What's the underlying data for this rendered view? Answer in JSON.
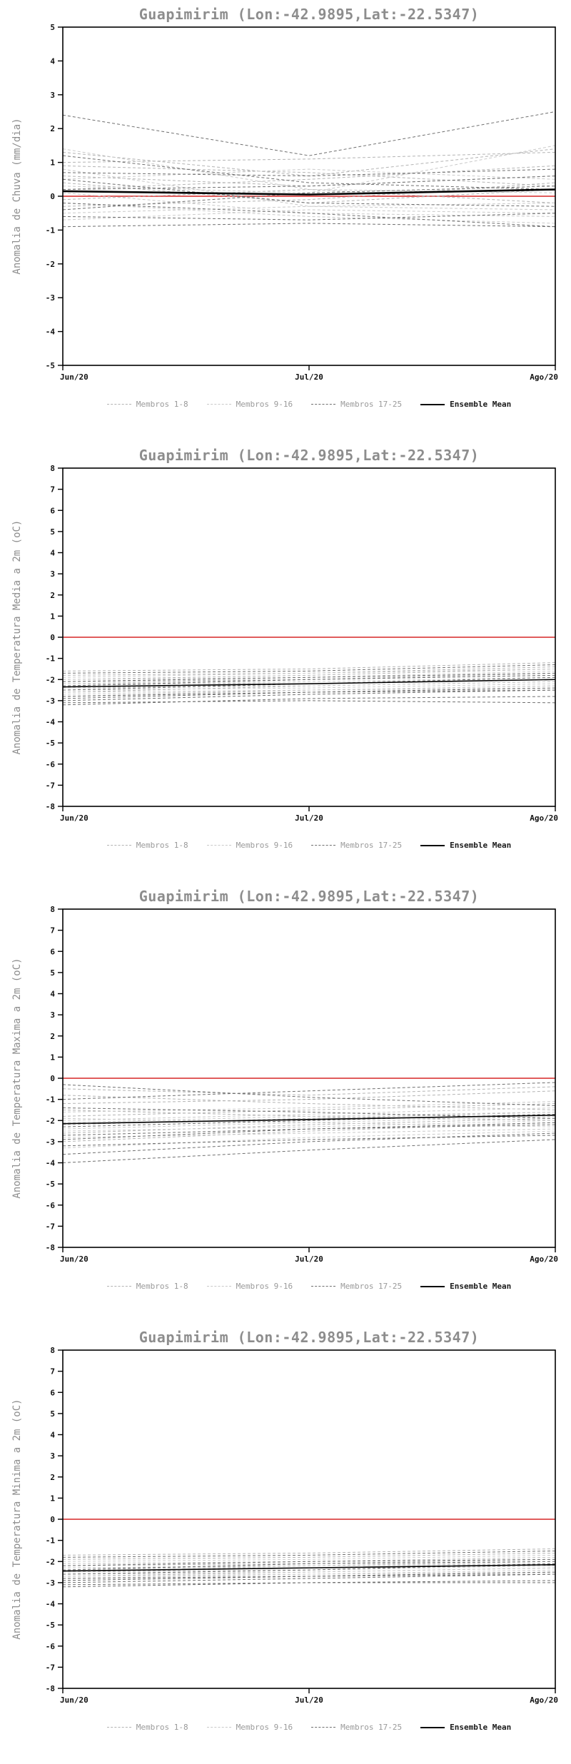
{
  "accent_colors": {
    "zero_line_red": "#e05c5c",
    "group1_gray": "#b3b3b3",
    "group2_gray": "#c9c9c9",
    "group3_gray": "#6f6f6f",
    "mean_black": "#000000",
    "title_gray": "#8d8d8d"
  },
  "chart_data": [
    {
      "type": "line",
      "title": "Guapimirim (Lon:-42.9895,Lat:-22.5347)",
      "ylabel": "Anomalia de Chuva (mm/dia)",
      "x_ticklabels": [
        "Jun/20",
        "Jul/20",
        "Ago/20"
      ],
      "ylim": [
        -5,
        5
      ],
      "ytick_step": 1,
      "grid": false,
      "legend_position": "bottom",
      "zero_line": {
        "value": 0,
        "color": "#e05c5c"
      },
      "mean": {
        "name": "Ensemble Mean",
        "color": "#000000",
        "width": 2.6,
        "values": [
          0.15,
          0.05,
          0.2
        ]
      },
      "groups": [
        {
          "name": "Membros 1-8",
          "color": "#b3b3b3",
          "members": [
            [
              1.3,
              0.6,
              1.4
            ],
            [
              0.9,
              0.7,
              0.3
            ],
            [
              0.6,
              0.3,
              0.6
            ],
            [
              0.4,
              -0.2,
              0.2
            ],
            [
              0.2,
              0.5,
              0.9
            ],
            [
              -0.1,
              0.2,
              -0.2
            ],
            [
              -0.3,
              -0.1,
              0.4
            ],
            [
              1.0,
              1.1,
              1.3
            ]
          ]
        },
        {
          "name": "Membros 9-16",
          "color": "#c9c9c9",
          "members": [
            [
              1.4,
              0.2,
              0.1
            ],
            [
              0.8,
              -0.3,
              -0.4
            ],
            [
              0.5,
              0.8,
              0.5
            ],
            [
              0.1,
              -0.5,
              -0.6
            ],
            [
              -0.2,
              -0.6,
              -0.8
            ],
            [
              -0.5,
              -0.3,
              -0.2
            ],
            [
              0.3,
              0.1,
              1.5
            ],
            [
              -0.7,
              -0.4,
              -0.5
            ]
          ]
        },
        {
          "name": "Membros 17-25",
          "color": "#6f6f6f",
          "members": [
            [
              2.4,
              1.2,
              2.5
            ],
            [
              1.2,
              0.4,
              0.2
            ],
            [
              0.5,
              -0.2,
              -0.3
            ],
            [
              -0.2,
              -0.5,
              -0.9
            ],
            [
              -0.6,
              -0.7,
              -0.5
            ],
            [
              -0.9,
              -0.8,
              -0.9
            ],
            [
              0.2,
              0.3,
              0.6
            ],
            [
              -0.4,
              0.1,
              0.3
            ],
            [
              0.7,
              0.6,
              0.8
            ]
          ]
        }
      ]
    },
    {
      "type": "line",
      "title": "Guapimirim (Lon:-42.9895,Lat:-22.5347)",
      "ylabel": "Anomalia de Temperatura Media a 2m (oC)",
      "x_ticklabels": [
        "Jun/20",
        "Jul/20",
        "Ago/20"
      ],
      "ylim": [
        -8,
        8
      ],
      "ytick_step": 1,
      "grid": false,
      "legend_position": "bottom",
      "zero_line": {
        "value": 0,
        "color": "#e05c5c"
      },
      "mean": {
        "name": "Ensemble Mean",
        "color": "#000000",
        "width": 1.6,
        "values": [
          -2.35,
          -2.2,
          -2.0
        ]
      },
      "groups": [
        {
          "name": "Membros 1-8",
          "color": "#b3b3b3",
          "members": [
            [
              -2.0,
              -1.8,
              -1.5
            ],
            [
              -2.2,
              -2.0,
              -1.8
            ],
            [
              -2.4,
              -2.2,
              -2.0
            ],
            [
              -1.8,
              -1.7,
              -1.4
            ],
            [
              -2.6,
              -2.3,
              -2.1
            ],
            [
              -2.1,
              -2.0,
              -1.7
            ],
            [
              -2.8,
              -2.5,
              -2.3
            ],
            [
              -1.6,
              -1.5,
              -1.2
            ]
          ]
        },
        {
          "name": "Membros 9-16",
          "color": "#c9c9c9",
          "members": [
            [
              -2.3,
              -2.1,
              -1.9
            ],
            [
              -2.5,
              -2.4,
              -2.2
            ],
            [
              -2.0,
              -1.9,
              -1.6
            ],
            [
              -2.7,
              -2.5,
              -2.4
            ],
            [
              -2.2,
              -2.2,
              -2.0
            ],
            [
              -1.9,
              -1.7,
              -1.5
            ],
            [
              -2.4,
              -2.3,
              -2.1
            ],
            [
              -2.6,
              -2.5,
              -2.3
            ]
          ]
        },
        {
          "name": "Membros 17-25",
          "color": "#6f6f6f",
          "members": [
            [
              -3.0,
              -2.7,
              -2.5
            ],
            [
              -3.2,
              -2.9,
              -2.8
            ],
            [
              -2.9,
              -2.6,
              -2.4
            ],
            [
              -2.1,
              -1.9,
              -1.7
            ],
            [
              -2.5,
              -2.2,
              -1.9
            ],
            [
              -2.8,
              -2.6,
              -2.5
            ],
            [
              -2.3,
              -2.0,
              -1.8
            ],
            [
              -3.1,
              -3.0,
              -3.1
            ],
            [
              -1.7,
              -1.6,
              -1.3
            ]
          ]
        }
      ]
    },
    {
      "type": "line",
      "title": "Guapimirim (Lon:-42.9895,Lat:-22.5347)",
      "ylabel": "Anomalia de Temperatura Maxima a 2m (oC)",
      "x_ticklabels": [
        "Jun/20",
        "Jul/20",
        "Ago/20"
      ],
      "ylim": [
        -8,
        8
      ],
      "ytick_step": 1,
      "grid": false,
      "legend_position": "bottom",
      "zero_line": {
        "value": 0,
        "color": "#e05c5c"
      },
      "mean": {
        "name": "Ensemble Mean",
        "color": "#000000",
        "width": 1.6,
        "values": [
          -2.15,
          -1.95,
          -1.75
        ]
      },
      "groups": [
        {
          "name": "Membros 1-8",
          "color": "#b3b3b3",
          "members": [
            [
              -1.2,
              -1.0,
              -0.6
            ],
            [
              -1.8,
              -1.5,
              -1.2
            ],
            [
              -2.2,
              -1.9,
              -1.6
            ],
            [
              -0.8,
              -1.2,
              -1.5
            ],
            [
              -2.6,
              -2.2,
              -1.9
            ],
            [
              -1.5,
              -1.8,
              -2.0
            ],
            [
              -3.0,
              -2.5,
              -2.1
            ],
            [
              -0.5,
              -0.8,
              -0.4
            ]
          ]
        },
        {
          "name": "Membros 9-16",
          "color": "#c9c9c9",
          "members": [
            [
              -2.0,
              -1.7,
              -1.4
            ],
            [
              -2.4,
              -2.1,
              -2.3
            ],
            [
              -1.6,
              -1.4,
              -1.1
            ],
            [
              -2.8,
              -2.6,
              -2.4
            ],
            [
              -3.3,
              -2.8,
              -2.5
            ],
            [
              -1.9,
              -2.1,
              -1.8
            ],
            [
              -2.1,
              -1.8,
              -1.6
            ],
            [
              -2.5,
              -2.3,
              -2.0
            ]
          ]
        },
        {
          "name": "Membros 17-25",
          "color": "#6f6f6f",
          "members": [
            [
              -3.6,
              -3.0,
              -2.6
            ],
            [
              -4.0,
              -3.4,
              -2.9
            ],
            [
              -2.9,
              -2.4,
              -2.2
            ],
            [
              -1.4,
              -1.6,
              -1.9
            ],
            [
              -2.3,
              -2.0,
              -1.7
            ],
            [
              -3.2,
              -2.9,
              -2.7
            ],
            [
              -1.0,
              -0.6,
              -0.2
            ],
            [
              -2.7,
              -2.4,
              -2.1
            ],
            [
              -0.3,
              -0.9,
              -1.3
            ]
          ]
        }
      ]
    },
    {
      "type": "line",
      "title": "Guapimirim (Lon:-42.9895,Lat:-22.5347)",
      "ylabel": "Anomalia de Temperatura Minima a 2m (oC)",
      "x_ticklabels": [
        "Jun/20",
        "Jul/20",
        "Ago/20"
      ],
      "ylim": [
        -8,
        8
      ],
      "ytick_step": 1,
      "grid": false,
      "legend_position": "bottom",
      "zero_line": {
        "value": 0,
        "color": "#e05c5c"
      },
      "mean": {
        "name": "Ensemble Mean",
        "color": "#000000",
        "width": 1.6,
        "values": [
          -2.45,
          -2.3,
          -2.15
        ]
      },
      "groups": [
        {
          "name": "Membros 1-8",
          "color": "#b3b3b3",
          "members": [
            [
              -2.1,
              -2.0,
              -1.8
            ],
            [
              -2.3,
              -2.2,
              -2.0
            ],
            [
              -2.5,
              -2.3,
              -2.2
            ],
            [
              -1.9,
              -1.8,
              -1.6
            ],
            [
              -2.7,
              -2.5,
              -2.3
            ],
            [
              -2.2,
              -2.1,
              -1.9
            ],
            [
              -2.9,
              -2.7,
              -2.5
            ],
            [
              -1.7,
              -1.6,
              -1.4
            ]
          ]
        },
        {
          "name": "Membros 9-16",
          "color": "#c9c9c9",
          "members": [
            [
              -2.4,
              -2.2,
              -2.1
            ],
            [
              -2.6,
              -2.5,
              -2.3
            ],
            [
              -2.1,
              -2.0,
              -1.8
            ],
            [
              -2.8,
              -2.6,
              -2.5
            ],
            [
              -2.3,
              -2.3,
              -2.1
            ],
            [
              -2.0,
              -1.9,
              -1.7
            ],
            [
              -2.5,
              -2.4,
              -2.2
            ],
            [
              -2.7,
              -2.6,
              -2.4
            ]
          ]
        },
        {
          "name": "Membros 17-25",
          "color": "#6f6f6f",
          "members": [
            [
              -3.0,
              -2.8,
              -2.6
            ],
            [
              -3.2,
              -3.0,
              -2.9
            ],
            [
              -2.9,
              -2.7,
              -2.5
            ],
            [
              -2.2,
              -2.0,
              -1.9
            ],
            [
              -2.6,
              -2.4,
              -2.1
            ],
            [
              -2.8,
              -2.7,
              -2.6
            ],
            [
              -2.4,
              -2.1,
              -2.0
            ],
            [
              -3.1,
              -3.0,
              -3.0
            ],
            [
              -1.8,
              -1.7,
              -1.5
            ]
          ]
        }
      ]
    }
  ]
}
